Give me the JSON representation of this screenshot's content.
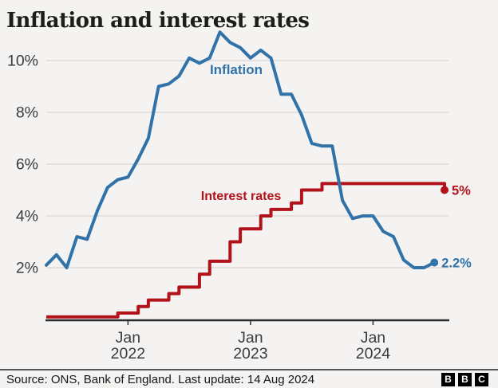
{
  "page": {
    "title": "Inflation and interest rates",
    "footer": {
      "source_text": "Source: ONS, Bank of England. Last update: 14 Aug 2024",
      "logo_letters": [
        "B",
        "B",
        "C"
      ]
    }
  },
  "colors": {
    "background": "#f4f3f1",
    "inflation_blue": "#3173a9",
    "rates_red": "#b2121a",
    "gridline": "#d9d7d5",
    "axis_line": "#2a2a2a",
    "tick_text": "#3c3c3e",
    "title_text": "#1d1d1b",
    "footer_text": "#161616",
    "logo_block": "#000000",
    "logo_letter": "#ffffff"
  },
  "chart_data": {
    "type": "line",
    "title": "Inflation and interest rates",
    "unit": "%",
    "grid": "horizontal",
    "ylim": [
      0,
      11.5
    ],
    "y_axis": {
      "ticks": [
        {
          "value": 2,
          "label": "2%"
        },
        {
          "value": 4,
          "label": "4%"
        },
        {
          "value": 6,
          "label": "6%"
        },
        {
          "value": 8,
          "label": "8%"
        },
        {
          "value": 10,
          "label": "10%"
        }
      ]
    },
    "x_axis": {
      "start_month": "2021-05",
      "end_month": "2024-08",
      "ticks": [
        {
          "month": "2022-01",
          "line1": "Jan",
          "line2": "2022"
        },
        {
          "month": "2023-01",
          "line1": "Jan",
          "line2": "2023"
        },
        {
          "month": "2024-01",
          "line1": "Jan",
          "line2": "2024"
        }
      ]
    },
    "series": [
      {
        "name": "Inflation",
        "kind": "monthly-line",
        "color": "#3173a9",
        "start_month": "2021-05",
        "end_month": "2024-07",
        "values": [
          2.1,
          2.5,
          2.0,
          3.2,
          3.1,
          4.2,
          5.1,
          5.4,
          5.5,
          6.2,
          7.0,
          9.0,
          9.1,
          9.4,
          10.1,
          9.9,
          10.1,
          11.1,
          10.7,
          10.5,
          10.1,
          10.4,
          10.1,
          8.7,
          8.7,
          7.9,
          6.8,
          6.7,
          6.7,
          4.6,
          3.9,
          4.0,
          4.0,
          3.4,
          3.2,
          2.3,
          2.0,
          2.0,
          2.2
        ],
        "end_label": "2.2%"
      },
      {
        "name": "Interest rates",
        "kind": "step",
        "color": "#b2121a",
        "changes": [
          [
            "2021-05",
            0.1
          ],
          [
            "2021-12",
            0.25
          ],
          [
            "2022-02",
            0.5
          ],
          [
            "2022-03",
            0.75
          ],
          [
            "2022-05",
            1.0
          ],
          [
            "2022-06",
            1.25
          ],
          [
            "2022-08",
            1.75
          ],
          [
            "2022-09",
            2.25
          ],
          [
            "2022-11",
            3.0
          ],
          [
            "2022-12",
            3.5
          ],
          [
            "2023-02",
            4.0
          ],
          [
            "2023-03",
            4.25
          ],
          [
            "2023-05",
            4.5
          ],
          [
            "2023-06",
            5.0
          ],
          [
            "2023-08",
            5.25
          ],
          [
            "2024-08",
            5.0
          ]
        ],
        "end_label": "5%"
      }
    ]
  }
}
